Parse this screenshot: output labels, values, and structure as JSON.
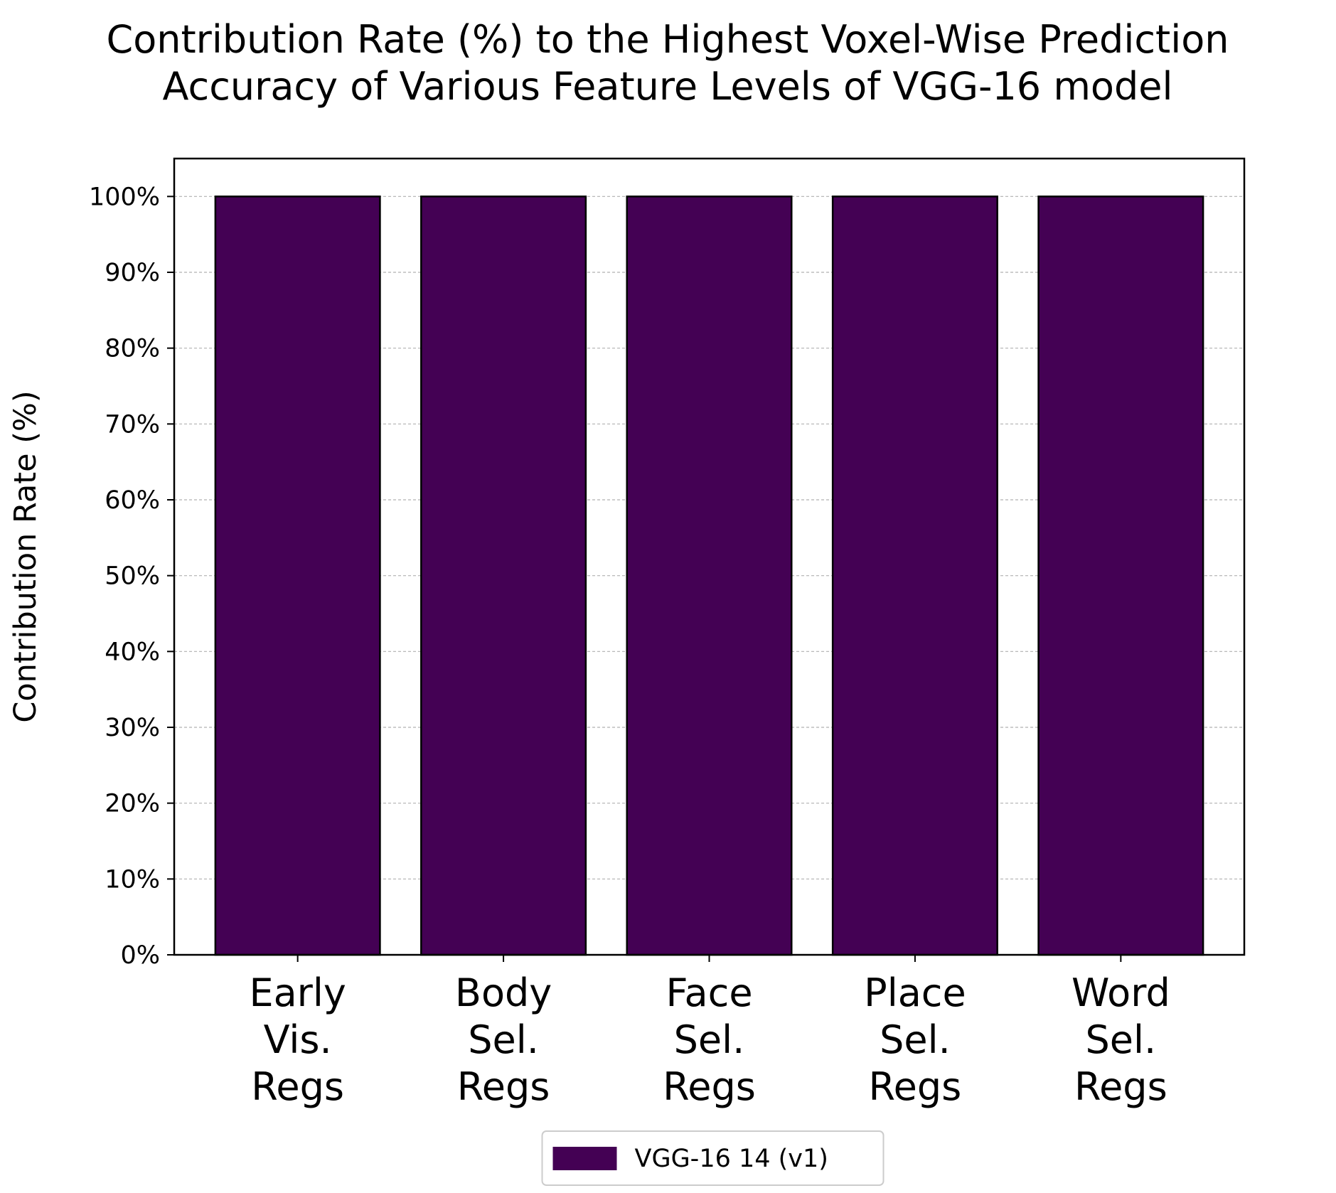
{
  "chart_data": {
    "type": "bar",
    "title_lines": [
      "Contribution Rate (%) to the Highest Voxel-Wise Prediction",
      "Accuracy of Various Feature Levels of VGG-16 model"
    ],
    "ylabel": "Contribution Rate (%)",
    "xlabel": "",
    "categories": [
      [
        "Early",
        "Vis.",
        "Regs"
      ],
      [
        "Body",
        "Sel.",
        "Regs"
      ],
      [
        "Face",
        "Sel.",
        "Regs"
      ],
      [
        "Place",
        "Sel.",
        "Regs"
      ],
      [
        "Word",
        "Sel.",
        "Regs"
      ]
    ],
    "series": [
      {
        "name": "VGG-16 14 (v1)",
        "values": [
          100,
          100,
          100,
          100,
          100
        ],
        "color": "#440154"
      }
    ],
    "ylim": [
      0,
      105
    ],
    "yticks": [
      0,
      10,
      20,
      30,
      40,
      50,
      60,
      70,
      80,
      90,
      100
    ],
    "ytick_labels": [
      "0%",
      "10%",
      "20%",
      "30%",
      "40%",
      "50%",
      "60%",
      "70%",
      "80%",
      "90%",
      "100%"
    ],
    "grid": "y-dashed",
    "legend_position": "bottom-center"
  }
}
